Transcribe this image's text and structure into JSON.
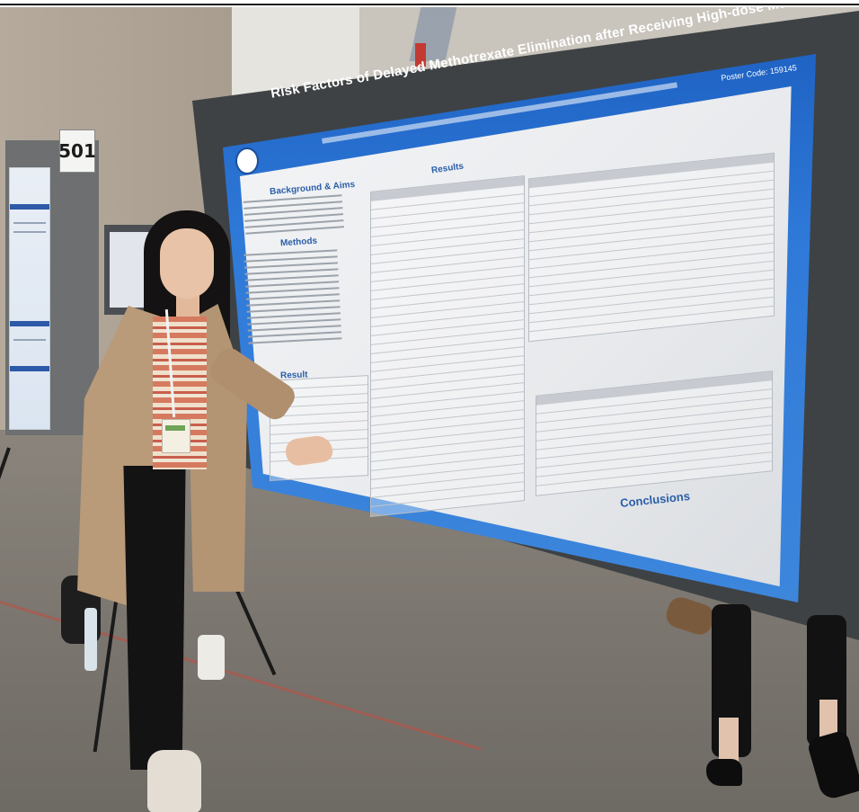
{
  "booth_sign": "501",
  "poster": {
    "title": "Risk Factors of Delayed Methotrexate Elimination after Receiving High-dose Methotrexate Therapy",
    "code": "Poster Code: 159145",
    "section_background": "Background & Aims",
    "section_methods": "Methods",
    "section_result": "Result",
    "section_results": "Results",
    "section_conclusions": "Conclusions"
  },
  "colors": {
    "poster_blue": "#1f63c4",
    "board": "#3e4244",
    "coat": "#b99a79"
  }
}
